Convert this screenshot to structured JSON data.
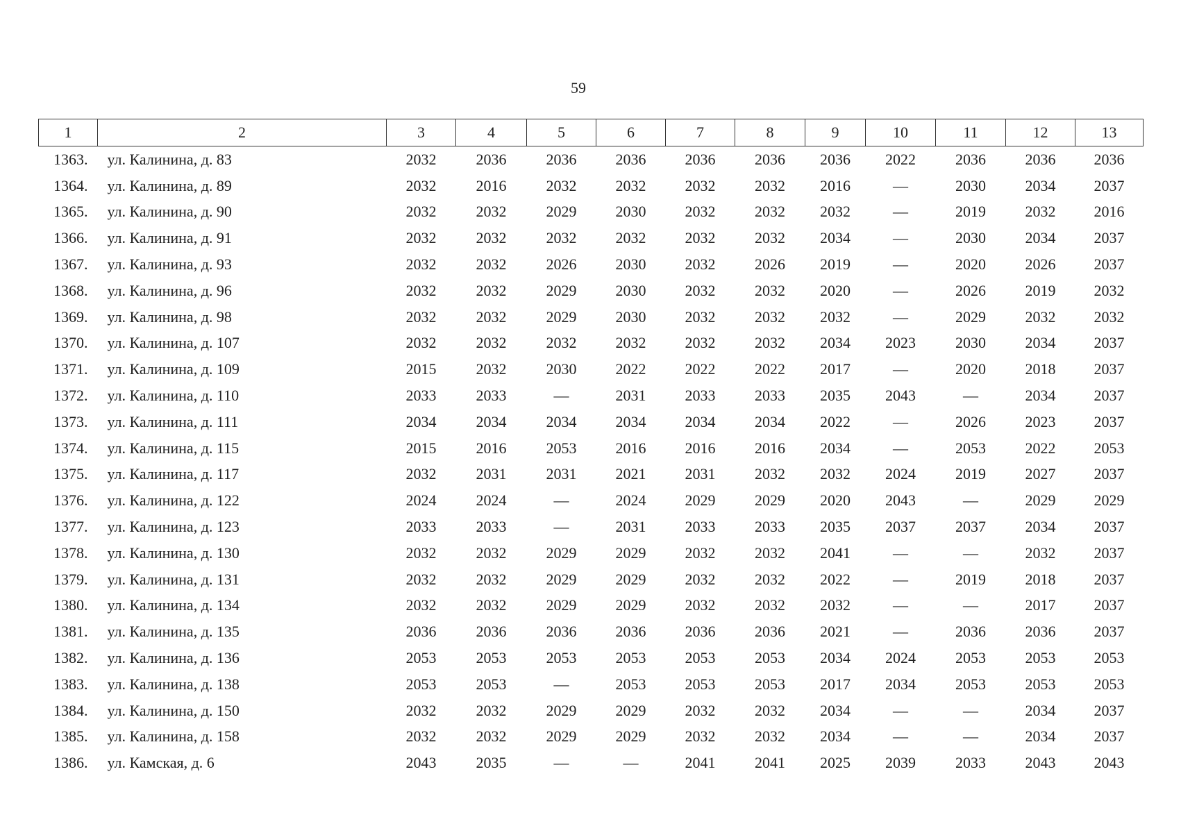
{
  "page_number": "59",
  "table": {
    "header": [
      "1",
      "2",
      "3",
      "4",
      "5",
      "6",
      "7",
      "8",
      "9",
      "10",
      "11",
      "12",
      "13"
    ],
    "rows": [
      [
        "1363.",
        "ул. Калинина, д. 83",
        "2032",
        "2036",
        "2036",
        "2036",
        "2036",
        "2036",
        "2036",
        "2022",
        "2036",
        "2036",
        "2036"
      ],
      [
        "1364.",
        "ул. Калинина, д. 89",
        "2032",
        "2016",
        "2032",
        "2032",
        "2032",
        "2032",
        "2016",
        "—",
        "2030",
        "2034",
        "2037"
      ],
      [
        "1365.",
        "ул. Калинина, д. 90",
        "2032",
        "2032",
        "2029",
        "2030",
        "2032",
        "2032",
        "2032",
        "—",
        "2019",
        "2032",
        "2016"
      ],
      [
        "1366.",
        "ул. Калинина, д. 91",
        "2032",
        "2032",
        "2032",
        "2032",
        "2032",
        "2032",
        "2034",
        "—",
        "2030",
        "2034",
        "2037"
      ],
      [
        "1367.",
        "ул. Калинина, д. 93",
        "2032",
        "2032",
        "2026",
        "2030",
        "2032",
        "2026",
        "2019",
        "—",
        "2020",
        "2026",
        "2037"
      ],
      [
        "1368.",
        "ул. Калинина, д. 96",
        "2032",
        "2032",
        "2029",
        "2030",
        "2032",
        "2032",
        "2020",
        "—",
        "2026",
        "2019",
        "2032"
      ],
      [
        "1369.",
        "ул. Калинина, д. 98",
        "2032",
        "2032",
        "2029",
        "2030",
        "2032",
        "2032",
        "2032",
        "—",
        "2029",
        "2032",
        "2032"
      ],
      [
        "1370.",
        "ул. Калинина, д. 107",
        "2032",
        "2032",
        "2032",
        "2032",
        "2032",
        "2032",
        "2034",
        "2023",
        "2030",
        "2034",
        "2037"
      ],
      [
        "1371.",
        "ул. Калинина, д. 109",
        "2015",
        "2032",
        "2030",
        "2022",
        "2022",
        "2022",
        "2017",
        "—",
        "2020",
        "2018",
        "2037"
      ],
      [
        "1372.",
        "ул. Калинина, д. 110",
        "2033",
        "2033",
        "—",
        "2031",
        "2033",
        "2033",
        "2035",
        "2043",
        "—",
        "2034",
        "2037"
      ],
      [
        "1373.",
        "ул. Калинина, д. 111",
        "2034",
        "2034",
        "2034",
        "2034",
        "2034",
        "2034",
        "2022",
        "—",
        "2026",
        "2023",
        "2037"
      ],
      [
        "1374.",
        "ул. Калинина, д. 115",
        "2015",
        "2016",
        "2053",
        "2016",
        "2016",
        "2016",
        "2034",
        "—",
        "2053",
        "2022",
        "2053"
      ],
      [
        "1375.",
        "ул. Калинина, д. 117",
        "2032",
        "2031",
        "2031",
        "2021",
        "2031",
        "2032",
        "2032",
        "2024",
        "2019",
        "2027",
        "2037"
      ],
      [
        "1376.",
        "ул. Калинина, д. 122",
        "2024",
        "2024",
        "—",
        "2024",
        "2029",
        "2029",
        "2020",
        "2043",
        "—",
        "2029",
        "2029"
      ],
      [
        "1377.",
        "ул. Калинина, д. 123",
        "2033",
        "2033",
        "—",
        "2031",
        "2033",
        "2033",
        "2035",
        "2037",
        "2037",
        "2034",
        "2037"
      ],
      [
        "1378.",
        "ул. Калинина, д. 130",
        "2032",
        "2032",
        "2029",
        "2029",
        "2032",
        "2032",
        "2041",
        "—",
        "—",
        "2032",
        "2037"
      ],
      [
        "1379.",
        "ул. Калинина, д. 131",
        "2032",
        "2032",
        "2029",
        "2029",
        "2032",
        "2032",
        "2022",
        "—",
        "2019",
        "2018",
        "2037"
      ],
      [
        "1380.",
        "ул. Калинина, д. 134",
        "2032",
        "2032",
        "2029",
        "2029",
        "2032",
        "2032",
        "2032",
        "—",
        "—",
        "2017",
        "2037"
      ],
      [
        "1381.",
        "ул. Калинина, д. 135",
        "2036",
        "2036",
        "2036",
        "2036",
        "2036",
        "2036",
        "2021",
        "—",
        "2036",
        "2036",
        "2037"
      ],
      [
        "1382.",
        "ул. Калинина, д. 136",
        "2053",
        "2053",
        "2053",
        "2053",
        "2053",
        "2053",
        "2034",
        "2024",
        "2053",
        "2053",
        "2053"
      ],
      [
        "1383.",
        "ул. Калинина, д. 138",
        "2053",
        "2053",
        "—",
        "2053",
        "2053",
        "2053",
        "2017",
        "2034",
        "2053",
        "2053",
        "2053"
      ],
      [
        "1384.",
        "ул. Калинина, д. 150",
        "2032",
        "2032",
        "2029",
        "2029",
        "2032",
        "2032",
        "2034",
        "—",
        "—",
        "2034",
        "2037"
      ],
      [
        "1385.",
        "ул. Калинина, д. 158",
        "2032",
        "2032",
        "2029",
        "2029",
        "2032",
        "2032",
        "2034",
        "—",
        "—",
        "2034",
        "2037"
      ],
      [
        "1386.",
        "ул. Камская, д. 6",
        "2043",
        "2035",
        "—",
        "—",
        "2041",
        "2041",
        "2025",
        "2039",
        "2033",
        "2043",
        "2043"
      ]
    ]
  }
}
